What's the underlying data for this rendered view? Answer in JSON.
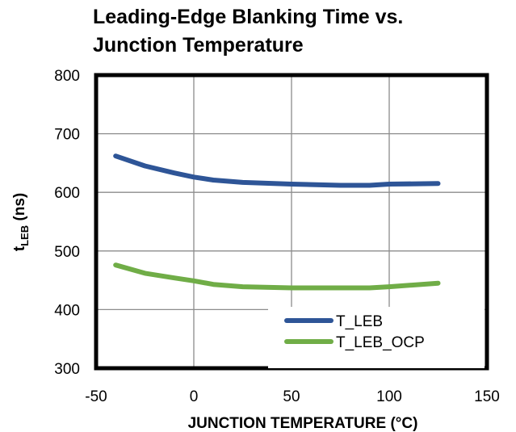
{
  "chart_data": {
    "type": "line",
    "title_line1": "Leading-Edge Blanking Time vs.",
    "title_line2": "Junction Temperature",
    "xlabel": "JUNCTION  TEMPERATURE  (°C)",
    "ylabel_main": "t",
    "ylabel_sub": "LEB",
    "ylabel_unit": " (ns)",
    "xlim": [
      -50,
      150
    ],
    "ylim": [
      300,
      800
    ],
    "x_ticks": [
      -50,
      0,
      50,
      100,
      150
    ],
    "y_ticks": [
      300,
      400,
      500,
      600,
      700,
      800
    ],
    "x_tick_labels": [
      "-50",
      "0",
      "50",
      "100",
      "150"
    ],
    "y_tick_labels": [
      "300",
      "400",
      "500",
      "600",
      "700",
      "800"
    ],
    "grid": true,
    "legend_position": "bottom-right",
    "series": [
      {
        "name": "T_LEB",
        "color": "#2E5597",
        "x": [
          -40,
          -25,
          -10,
          0,
          10,
          25,
          50,
          75,
          90,
          100,
          125
        ],
        "y": [
          662,
          645,
          633,
          626,
          621,
          617,
          614,
          612,
          612,
          614,
          615
        ]
      },
      {
        "name": "T_LEB_OCP",
        "color": "#70AD47",
        "x": [
          -40,
          -25,
          -10,
          0,
          10,
          25,
          50,
          75,
          90,
          100,
          125
        ],
        "y": [
          476,
          462,
          454,
          449,
          443,
          439,
          437,
          437,
          437,
          439,
          445
        ]
      }
    ]
  }
}
